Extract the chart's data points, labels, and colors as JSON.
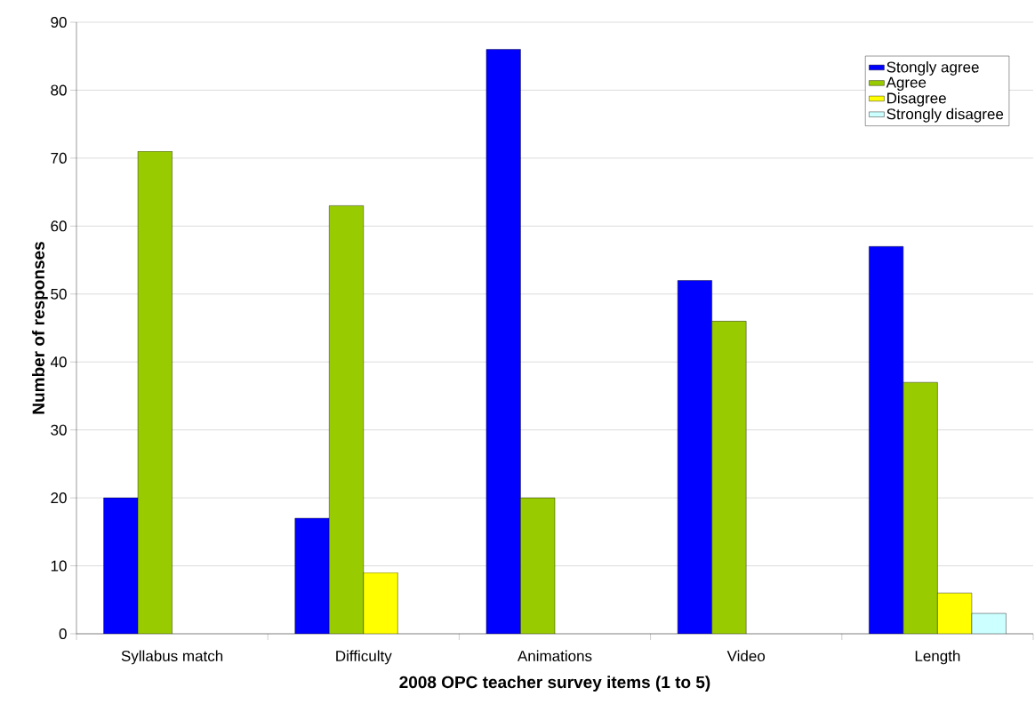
{
  "chart_data": {
    "type": "bar",
    "xlabel": "2008 OPC teacher survey items (1 to 5)",
    "ylabel": "Number of responses",
    "categories": [
      "Syllabus match",
      "Difficulty",
      "Animations",
      "Video",
      "Length"
    ],
    "series": [
      {
        "name": "Stongly agree",
        "color": "#0000ff",
        "values": [
          20,
          17,
          86,
          52,
          57
        ]
      },
      {
        "name": "Agree",
        "color": "#99cc00",
        "values": [
          71,
          63,
          20,
          46,
          37
        ]
      },
      {
        "name": "Disagree",
        "color": "#ffff00",
        "values": [
          null,
          9,
          null,
          null,
          6
        ]
      },
      {
        "name": "Strongly disagree",
        "color": "#ccffff",
        "values": [
          null,
          null,
          null,
          null,
          3
        ]
      }
    ],
    "ylim": [
      0,
      90
    ],
    "yticks": [
      0,
      10,
      20,
      30,
      40,
      50,
      60,
      70,
      80,
      90
    ],
    "grid": "y",
    "legend": "top right"
  }
}
